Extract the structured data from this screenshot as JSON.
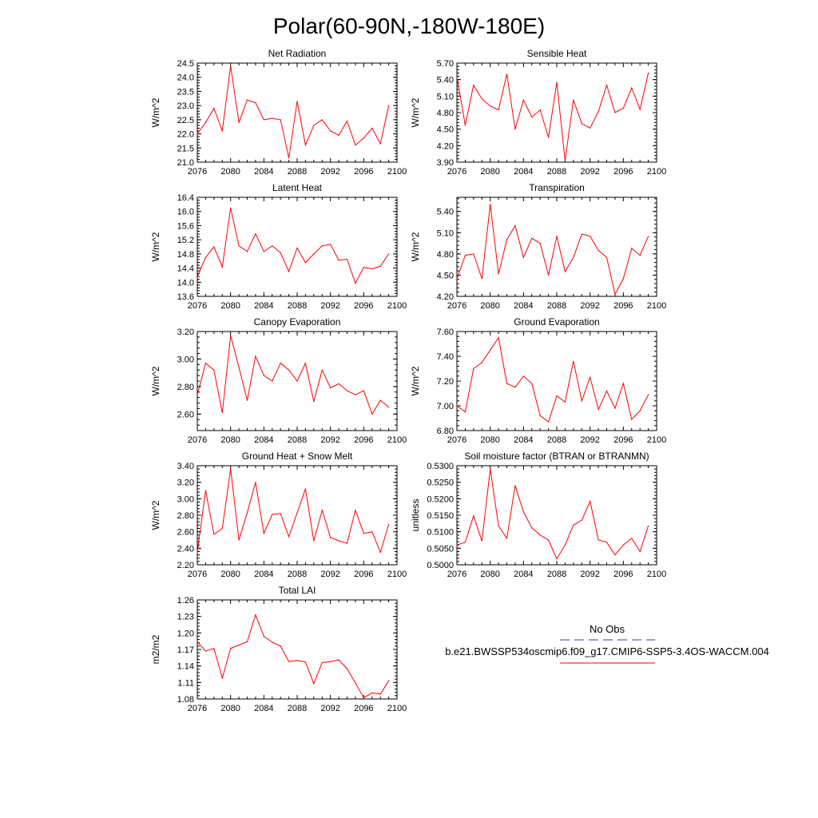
{
  "page_title": "Polar(60-90N,-180W-180E)",
  "colors": {
    "series": "#ff0000",
    "obs": "#3a3a8c",
    "axis": "#000000"
  },
  "legend": {
    "obs_label": "No Obs",
    "case_label": "b.e21.BWSSP534oscmip6.f09_g17.CMIP6-SSP5-3.4OS-WACCM.004"
  },
  "chart_data": [
    {
      "type": "line",
      "title": "Net Radiation",
      "xlabel": "",
      "ylabel": "W/m^2",
      "xlim": [
        2076,
        2100
      ],
      "xticks": [
        2076,
        2080,
        2084,
        2088,
        2092,
        2096,
        2100
      ],
      "ylim": [
        21.0,
        24.5
      ],
      "yticks": [
        "21.0",
        "21.5",
        "22.0",
        "22.5",
        "23.0",
        "23.5",
        "24.0",
        "24.5"
      ],
      "series": [
        {
          "name": "b.e21.BWSSP534oscmip6.f09_g17.CMIP6-SSP5-3.4OS-WACCM.004",
          "x": [
            2076,
            2077,
            2078,
            2079,
            2080,
            2081,
            2082,
            2083,
            2084,
            2085,
            2086,
            2087,
            2088,
            2089,
            2090,
            2091,
            2092,
            2093,
            2094,
            2095,
            2096,
            2097,
            2098,
            2099
          ],
          "values": [
            22.0,
            22.4,
            22.9,
            22.1,
            24.4,
            22.4,
            23.2,
            23.1,
            22.5,
            22.55,
            22.5,
            21.15,
            23.15,
            21.6,
            22.3,
            22.5,
            22.1,
            21.95,
            22.45,
            21.6,
            21.85,
            22.2,
            21.65,
            23.0
          ]
        }
      ]
    },
    {
      "type": "line",
      "title": "Sensible Heat",
      "xlabel": "",
      "ylabel": "W/m^2",
      "xlim": [
        2076,
        2100
      ],
      "xticks": [
        2076,
        2080,
        2084,
        2088,
        2092,
        2096,
        2100
      ],
      "ylim": [
        3.9,
        5.7
      ],
      "yticks": [
        "3.90",
        "4.20",
        "4.50",
        "4.80",
        "5.10",
        "5.40",
        "5.70"
      ],
      "series": [
        {
          "name": "b.e21.BWSSP534oscmip6.f09_g17.CMIP6-SSP5-3.4OS-WACCM.004",
          "x": [
            2076,
            2077,
            2078,
            2079,
            2080,
            2081,
            2082,
            2083,
            2084,
            2085,
            2086,
            2087,
            2088,
            2089,
            2090,
            2091,
            2092,
            2093,
            2094,
            2095,
            2096,
            2097,
            2098,
            2099
          ],
          "values": [
            5.45,
            4.57,
            5.3,
            5.05,
            4.92,
            4.85,
            5.5,
            4.5,
            5.03,
            4.72,
            4.85,
            4.35,
            5.35,
            3.93,
            5.03,
            4.6,
            4.52,
            4.82,
            5.3,
            4.8,
            4.88,
            5.25,
            4.86,
            5.52
          ]
        }
      ]
    },
    {
      "type": "line",
      "title": "Latent Heat",
      "xlabel": "",
      "ylabel": "W/m^2",
      "xlim": [
        2076,
        2100
      ],
      "xticks": [
        2076,
        2080,
        2084,
        2088,
        2092,
        2096,
        2100
      ],
      "ylim": [
        13.6,
        16.4
      ],
      "yticks": [
        "13.6",
        "14.0",
        "14.4",
        "14.8",
        "15.2",
        "15.6",
        "16.0",
        "16.4"
      ],
      "series": [
        {
          "name": "b.e21.BWSSP534oscmip6.f09_g17.CMIP6-SSP5-3.4OS-WACCM.004",
          "x": [
            2076,
            2077,
            2078,
            2079,
            2080,
            2081,
            2082,
            2083,
            2084,
            2085,
            2086,
            2087,
            2088,
            2089,
            2090,
            2091,
            2092,
            2093,
            2094,
            2095,
            2096,
            2097,
            2098,
            2099
          ],
          "values": [
            14.15,
            14.7,
            15.0,
            14.43,
            16.1,
            15.03,
            14.87,
            15.37,
            14.87,
            15.03,
            14.83,
            14.3,
            14.97,
            14.55,
            14.8,
            15.03,
            15.07,
            14.62,
            14.65,
            13.97,
            14.42,
            14.38,
            14.45,
            14.8
          ]
        }
      ]
    },
    {
      "type": "line",
      "title": "Transpiration",
      "xlabel": "",
      "ylabel": "W/m^2",
      "xlim": [
        2076,
        2100
      ],
      "xticks": [
        2076,
        2080,
        2084,
        2088,
        2092,
        2096,
        2100
      ],
      "ylim": [
        4.2,
        5.6
      ],
      "yticks": [
        "4.20",
        "4.50",
        "4.80",
        "5.10",
        "5.40"
      ],
      "series": [
        {
          "name": "b.e21.BWSSP534oscmip6.f09_g17.CMIP6-SSP5-3.4OS-WACCM.004",
          "x": [
            2076,
            2077,
            2078,
            2079,
            2080,
            2081,
            2082,
            2083,
            2084,
            2085,
            2086,
            2087,
            2088,
            2089,
            2090,
            2091,
            2092,
            2093,
            2094,
            2095,
            2096,
            2097,
            2098,
            2099
          ],
          "values": [
            4.45,
            4.78,
            4.8,
            4.45,
            5.5,
            4.52,
            5.0,
            5.2,
            4.75,
            5.02,
            4.95,
            4.5,
            5.05,
            4.55,
            4.75,
            5.08,
            5.05,
            4.85,
            4.75,
            4.23,
            4.45,
            4.88,
            4.78,
            5.05
          ]
        }
      ]
    },
    {
      "type": "line",
      "title": "Canopy Evaporation",
      "xlabel": "",
      "ylabel": "W/m^2",
      "xlim": [
        2076,
        2100
      ],
      "xticks": [
        2076,
        2080,
        2084,
        2088,
        2092,
        2096,
        2100
      ],
      "ylim": [
        2.48,
        3.2
      ],
      "yticks": [
        "2.60",
        "2.80",
        "3.00",
        "3.20"
      ],
      "series": [
        {
          "name": "b.e21.BWSSP534oscmip6.f09_g17.CMIP6-SSP5-3.4OS-WACCM.004",
          "x": [
            2076,
            2077,
            2078,
            2079,
            2080,
            2081,
            2082,
            2083,
            2084,
            2085,
            2086,
            2087,
            2088,
            2089,
            2090,
            2091,
            2092,
            2093,
            2094,
            2095,
            2096,
            2097,
            2098,
            2099
          ],
          "values": [
            2.74,
            2.97,
            2.92,
            2.61,
            3.17,
            2.94,
            2.7,
            3.02,
            2.88,
            2.84,
            2.97,
            2.92,
            2.84,
            2.97,
            2.69,
            2.92,
            2.79,
            2.82,
            2.77,
            2.74,
            2.77,
            2.6,
            2.7,
            2.65
          ]
        }
      ]
    },
    {
      "type": "line",
      "title": "Ground Evaporation",
      "xlabel": "",
      "ylabel": "W/m^2",
      "xlim": [
        2076,
        2100
      ],
      "xticks": [
        2076,
        2080,
        2084,
        2088,
        2092,
        2096,
        2100
      ],
      "ylim": [
        6.8,
        7.6
      ],
      "yticks": [
        "6.80",
        "7.00",
        "7.20",
        "7.40",
        "7.60"
      ],
      "series": [
        {
          "name": "b.e21.BWSSP534oscmip6.f09_g17.CMIP6-SSP5-3.4OS-WACCM.004",
          "x": [
            2076,
            2077,
            2078,
            2079,
            2080,
            2081,
            2082,
            2083,
            2084,
            2085,
            2086,
            2087,
            2088,
            2089,
            2090,
            2091,
            2092,
            2093,
            2094,
            2095,
            2096,
            2097,
            2098,
            2099
          ],
          "values": [
            7.0,
            6.95,
            7.3,
            7.35,
            7.45,
            7.55,
            7.18,
            7.15,
            7.24,
            7.18,
            6.92,
            6.87,
            7.08,
            7.03,
            7.36,
            7.04,
            7.23,
            6.97,
            7.12,
            6.98,
            7.18,
            6.89,
            6.96,
            7.09
          ]
        }
      ]
    },
    {
      "type": "line",
      "title": "Ground Heat + Snow Melt",
      "xlabel": "",
      "ylabel": "W/m^2",
      "xlim": [
        2076,
        2100
      ],
      "xticks": [
        2076,
        2080,
        2084,
        2088,
        2092,
        2096,
        2100
      ],
      "ylim": [
        2.2,
        3.4
      ],
      "yticks": [
        "2.20",
        "2.40",
        "2.60",
        "2.80",
        "3.00",
        "3.20",
        "3.40"
      ],
      "series": [
        {
          "name": "b.e21.BWSSP534oscmip6.f09_g17.CMIP6-SSP5-3.4OS-WACCM.004",
          "x": [
            2076,
            2077,
            2078,
            2079,
            2080,
            2081,
            2082,
            2083,
            2084,
            2085,
            2086,
            2087,
            2088,
            2089,
            2090,
            2091,
            2092,
            2093,
            2094,
            2095,
            2096,
            2097,
            2098,
            2099
          ],
          "values": [
            2.35,
            3.1,
            2.57,
            2.64,
            3.36,
            2.5,
            2.83,
            3.2,
            2.58,
            2.81,
            2.82,
            2.54,
            2.83,
            3.12,
            2.49,
            2.86,
            2.53,
            2.49,
            2.46,
            2.86,
            2.58,
            2.6,
            2.35,
            2.69
          ]
        }
      ]
    },
    {
      "type": "line",
      "title": "Soil moisture factor (BTRAN or BTRANMN)",
      "xlabel": "",
      "ylabel": "unitless",
      "xlim": [
        2076,
        2100
      ],
      "xticks": [
        2076,
        2080,
        2084,
        2088,
        2092,
        2096,
        2100
      ],
      "ylim": [
        0.5,
        0.53
      ],
      "yticks": [
        "0.5000",
        "0.5050",
        "0.5100",
        "0.5150",
        "0.5200",
        "0.5250",
        "0.5300"
      ],
      "series": [
        {
          "name": "b.e21.BWSSP534oscmip6.f09_g17.CMIP6-SSP5-3.4OS-WACCM.004",
          "x": [
            2076,
            2077,
            2078,
            2079,
            2080,
            2081,
            2082,
            2083,
            2084,
            2085,
            2086,
            2087,
            2088,
            2089,
            2090,
            2091,
            2092,
            2093,
            2094,
            2095,
            2096,
            2097,
            2098,
            2099
          ],
          "values": [
            0.506,
            0.5068,
            0.5148,
            0.5072,
            0.529,
            0.5118,
            0.508,
            0.524,
            0.516,
            0.5112,
            0.509,
            0.5075,
            0.5018,
            0.506,
            0.512,
            0.5135,
            0.5192,
            0.5075,
            0.5068,
            0.503,
            0.506,
            0.508,
            0.504,
            0.5118
          ]
        }
      ]
    },
    {
      "type": "line",
      "title": "Total LAI",
      "xlabel": "",
      "ylabel": "m2/m2",
      "xlim": [
        2076,
        2100
      ],
      "xticks": [
        2076,
        2080,
        2084,
        2088,
        2092,
        2096,
        2100
      ],
      "ylim": [
        1.08,
        1.26
      ],
      "yticks": [
        "1.08",
        "1.11",
        "1.14",
        "1.17",
        "1.20",
        "1.23",
        "1.26"
      ],
      "series": [
        {
          "name": "b.e21.BWSSP534oscmip6.f09_g17.CMIP6-SSP5-3.4OS-WACCM.004",
          "x": [
            2076,
            2077,
            2078,
            2079,
            2080,
            2081,
            2082,
            2083,
            2084,
            2085,
            2086,
            2087,
            2088,
            2089,
            2090,
            2091,
            2092,
            2093,
            2094,
            2095,
            2096,
            2097,
            2098,
            2099
          ],
          "values": [
            1.184,
            1.167,
            1.172,
            1.118,
            1.172,
            1.178,
            1.184,
            1.233,
            1.194,
            1.183,
            1.176,
            1.148,
            1.15,
            1.147,
            1.108,
            1.146,
            1.148,
            1.151,
            1.135,
            1.109,
            1.082,
            1.091,
            1.089,
            1.113
          ]
        }
      ]
    }
  ]
}
